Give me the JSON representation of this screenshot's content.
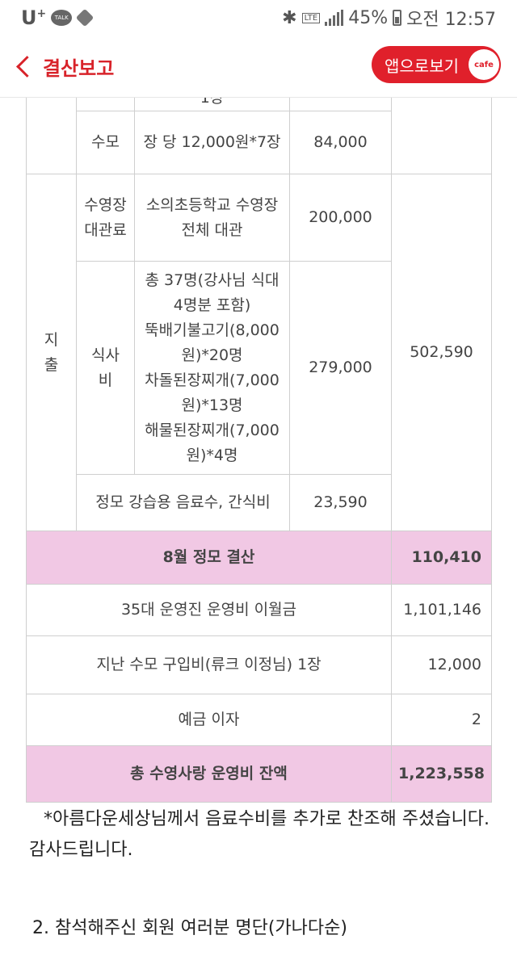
{
  "status_bar": {
    "carrier": "U",
    "carrier_sup": "+",
    "talk_label": "TALK",
    "lte": "LTE",
    "battery": "45%",
    "time": "오전 12:57"
  },
  "app_bar": {
    "title": "결산보고",
    "view_in_app": "앱으로보기",
    "cafe_badge": "cafe"
  },
  "table": {
    "partial_row_text": "1장",
    "swim_cap": {
      "label": "수모",
      "desc": "장 당 12,000원*7장",
      "amount": "84,000"
    },
    "expense_label": "지출",
    "pool_rental": {
      "label": "수영장 대관료",
      "desc": "소의초등학교 수영장 전체 대관",
      "amount": "200,000"
    },
    "meal": {
      "label": "식사비",
      "desc_lines": [
        "총 37명(강사님 식대 4명분 포함)",
        "뚝배기불고기(8,000원)*20명",
        "차돌된장찌개(7,000원)*13명",
        "해물된장찌개(7,000원)*4명"
      ],
      "amount": "279,000"
    },
    "expense_total": "502,590",
    "snacks": {
      "desc": "정모 강습용 음료수, 간식비",
      "amount": "23,590"
    },
    "august_settlement": {
      "label": "8월 정모 결산",
      "amount": "110,410"
    },
    "carryover": {
      "label": "35대 운영진 운영비 이월금",
      "amount": "1,101,146"
    },
    "cap_purchase": {
      "label": "지난 수모 구입비(류크 이정님) 1장",
      "amount": "12,000"
    },
    "interest": {
      "label": "예금 이자",
      "amount": "2"
    },
    "balance": {
      "label": "총 수영사랑 운영비 잔액",
      "amount": "1,223,558"
    }
  },
  "note": "*아름다운세상님께서 음료수비를 추가로 찬조해 주셨습니다. 감사드립니다.",
  "attendees_heading": "2. 참석해주신 회원 여러분 명단(가나다순)"
}
